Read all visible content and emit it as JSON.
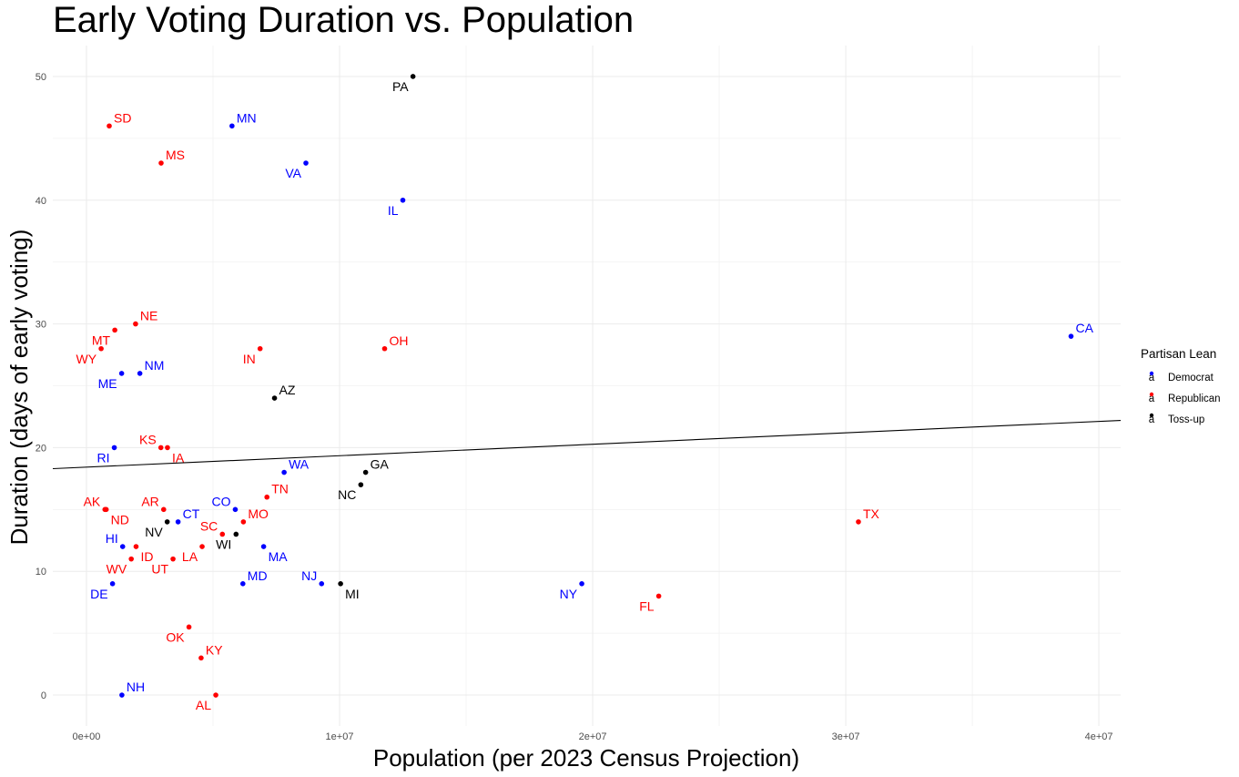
{
  "chart_data": {
    "type": "scatter",
    "title": "Early Voting Duration vs. Population",
    "xlabel": "Population (per 2023 Census Projection)",
    "ylabel": "Duration (days of early voting)",
    "xlim": [
      -1330000,
      40860000
    ],
    "ylim": [
      -2.5,
      52.5
    ],
    "x_ticks": [
      0,
      10000000,
      20000000,
      30000000,
      40000000
    ],
    "x_tick_labels": [
      "0e+00",
      "1e+07",
      "2e+07",
      "3e+07",
      "4e+07"
    ],
    "y_ticks": [
      0,
      10,
      20,
      30,
      40,
      50
    ],
    "y_tick_labels": [
      "0",
      "10",
      "20",
      "30",
      "40",
      "50"
    ],
    "grid": true,
    "legend": {
      "title": "Partisan Lean",
      "placement": "right",
      "entries": [
        {
          "name": "Democrat",
          "color": "#0000ff"
        },
        {
          "name": "Republican",
          "color": "#ff0000"
        },
        {
          "name": "Toss-up",
          "color": "#000000"
        }
      ]
    },
    "trend_line": {
      "x": [
        -1330000,
        40860000
      ],
      "y": [
        18.3,
        22.2
      ]
    },
    "points": [
      {
        "label": "PA",
        "x": 12900000,
        "y": 50,
        "lean": "Toss-up",
        "pos": "bl"
      },
      {
        "label": "SD",
        "x": 900000,
        "y": 46,
        "lean": "Republican",
        "pos": "tr"
      },
      {
        "label": "MN",
        "x": 5750000,
        "y": 46,
        "lean": "Democrat",
        "pos": "tr"
      },
      {
        "label": "MS",
        "x": 2950000,
        "y": 43,
        "lean": "Republican",
        "pos": "tr"
      },
      {
        "label": "VA",
        "x": 8670000,
        "y": 43,
        "lean": "Democrat",
        "pos": "bl"
      },
      {
        "label": "IL",
        "x": 12500000,
        "y": 40,
        "lean": "Democrat",
        "pos": "bl"
      },
      {
        "label": "NE",
        "x": 1940000,
        "y": 30,
        "lean": "Republican",
        "pos": "tr"
      },
      {
        "label": "MT",
        "x": 1120000,
        "y": 29.5,
        "lean": "Republican",
        "pos": "bl"
      },
      {
        "label": "WY",
        "x": 580000,
        "y": 28,
        "lean": "Republican",
        "pos": "bl"
      },
      {
        "label": "IN",
        "x": 6860000,
        "y": 28,
        "lean": "Republican",
        "pos": "bl"
      },
      {
        "label": "OH",
        "x": 11780000,
        "y": 28,
        "lean": "Republican",
        "pos": "tr"
      },
      {
        "label": "CA",
        "x": 38900000,
        "y": 29,
        "lean": "Democrat",
        "pos": "tr"
      },
      {
        "label": "ME",
        "x": 1390000,
        "y": 26,
        "lean": "Democrat",
        "pos": "bl"
      },
      {
        "label": "NM",
        "x": 2110000,
        "y": 26,
        "lean": "Democrat",
        "pos": "tr"
      },
      {
        "label": "AZ",
        "x": 7430000,
        "y": 24,
        "lean": "Toss-up",
        "pos": "tr"
      },
      {
        "label": "RI",
        "x": 1100000,
        "y": 20,
        "lean": "Democrat",
        "pos": "bl"
      },
      {
        "label": "KS",
        "x": 2940000,
        "y": 20,
        "lean": "Republican",
        "pos": "tl"
      },
      {
        "label": "IA",
        "x": 3200000,
        "y": 20,
        "lean": "Republican",
        "pos": "br"
      },
      {
        "label": "WA",
        "x": 7810000,
        "y": 18,
        "lean": "Democrat",
        "pos": "tr"
      },
      {
        "label": "GA",
        "x": 11030000,
        "y": 18,
        "lean": "Toss-up",
        "pos": "tr"
      },
      {
        "label": "NC",
        "x": 10840000,
        "y": 17,
        "lean": "Toss-up",
        "pos": "bl"
      },
      {
        "label": "TN",
        "x": 7130000,
        "y": 16,
        "lean": "Republican",
        "pos": "tr"
      },
      {
        "label": "AK",
        "x": 730000,
        "y": 15,
        "lean": "Republican",
        "pos": "tl"
      },
      {
        "label": "ND",
        "x": 780000,
        "y": 15,
        "lean": "Republican",
        "pos": "br"
      },
      {
        "label": "AR",
        "x": 3050000,
        "y": 15,
        "lean": "Republican",
        "pos": "tl"
      },
      {
        "label": "CO",
        "x": 5880000,
        "y": 15,
        "lean": "Democrat",
        "pos": "tl"
      },
      {
        "label": "CT",
        "x": 3620000,
        "y": 14,
        "lean": "Democrat",
        "pos": "tr"
      },
      {
        "label": "NV",
        "x": 3190000,
        "y": 14,
        "lean": "Toss-up",
        "pos": "bl"
      },
      {
        "label": "MO",
        "x": 6200000,
        "y": 14,
        "lean": "Republican",
        "pos": "tr"
      },
      {
        "label": "TX",
        "x": 30500000,
        "y": 14,
        "lean": "Republican",
        "pos": "tr"
      },
      {
        "label": "SC",
        "x": 5370000,
        "y": 13,
        "lean": "Republican",
        "pos": "tl"
      },
      {
        "label": "WI",
        "x": 5910000,
        "y": 13,
        "lean": "Toss-up",
        "pos": "bl"
      },
      {
        "label": "HI",
        "x": 1430000,
        "y": 12,
        "lean": "Democrat",
        "pos": "tl"
      },
      {
        "label": "ID",
        "x": 1960000,
        "y": 12,
        "lean": "Republican",
        "pos": "br"
      },
      {
        "label": "LA",
        "x": 4570000,
        "y": 12,
        "lean": "Republican",
        "pos": "bl"
      },
      {
        "label": "MA",
        "x": 7000000,
        "y": 12,
        "lean": "Democrat",
        "pos": "br"
      },
      {
        "label": "WV",
        "x": 1770000,
        "y": 11,
        "lean": "Republican",
        "pos": "bl"
      },
      {
        "label": "UT",
        "x": 3420000,
        "y": 11,
        "lean": "Republican",
        "pos": "bl"
      },
      {
        "label": "MD",
        "x": 6180000,
        "y": 9,
        "lean": "Democrat",
        "pos": "tr"
      },
      {
        "label": "DE",
        "x": 1030000,
        "y": 9,
        "lean": "Democrat",
        "pos": "bl"
      },
      {
        "label": "NJ",
        "x": 9290000,
        "y": 9,
        "lean": "Democrat",
        "pos": "tl"
      },
      {
        "label": "MI",
        "x": 10040000,
        "y": 9,
        "lean": "Toss-up",
        "pos": "br"
      },
      {
        "label": "NY",
        "x": 19570000,
        "y": 9,
        "lean": "Democrat",
        "pos": "bl"
      },
      {
        "label": "FL",
        "x": 22610000,
        "y": 8,
        "lean": "Republican",
        "pos": "bl"
      },
      {
        "label": "OK",
        "x": 4050000,
        "y": 5.5,
        "lean": "Republican",
        "pos": "bl"
      },
      {
        "label": "KY",
        "x": 4530000,
        "y": 3,
        "lean": "Republican",
        "pos": "tr"
      },
      {
        "label": "NH",
        "x": 1400000,
        "y": 0,
        "lean": "Democrat",
        "pos": "tr"
      },
      {
        "label": "AL",
        "x": 5110000,
        "y": 0,
        "lean": "Republican",
        "pos": "bl"
      }
    ]
  }
}
